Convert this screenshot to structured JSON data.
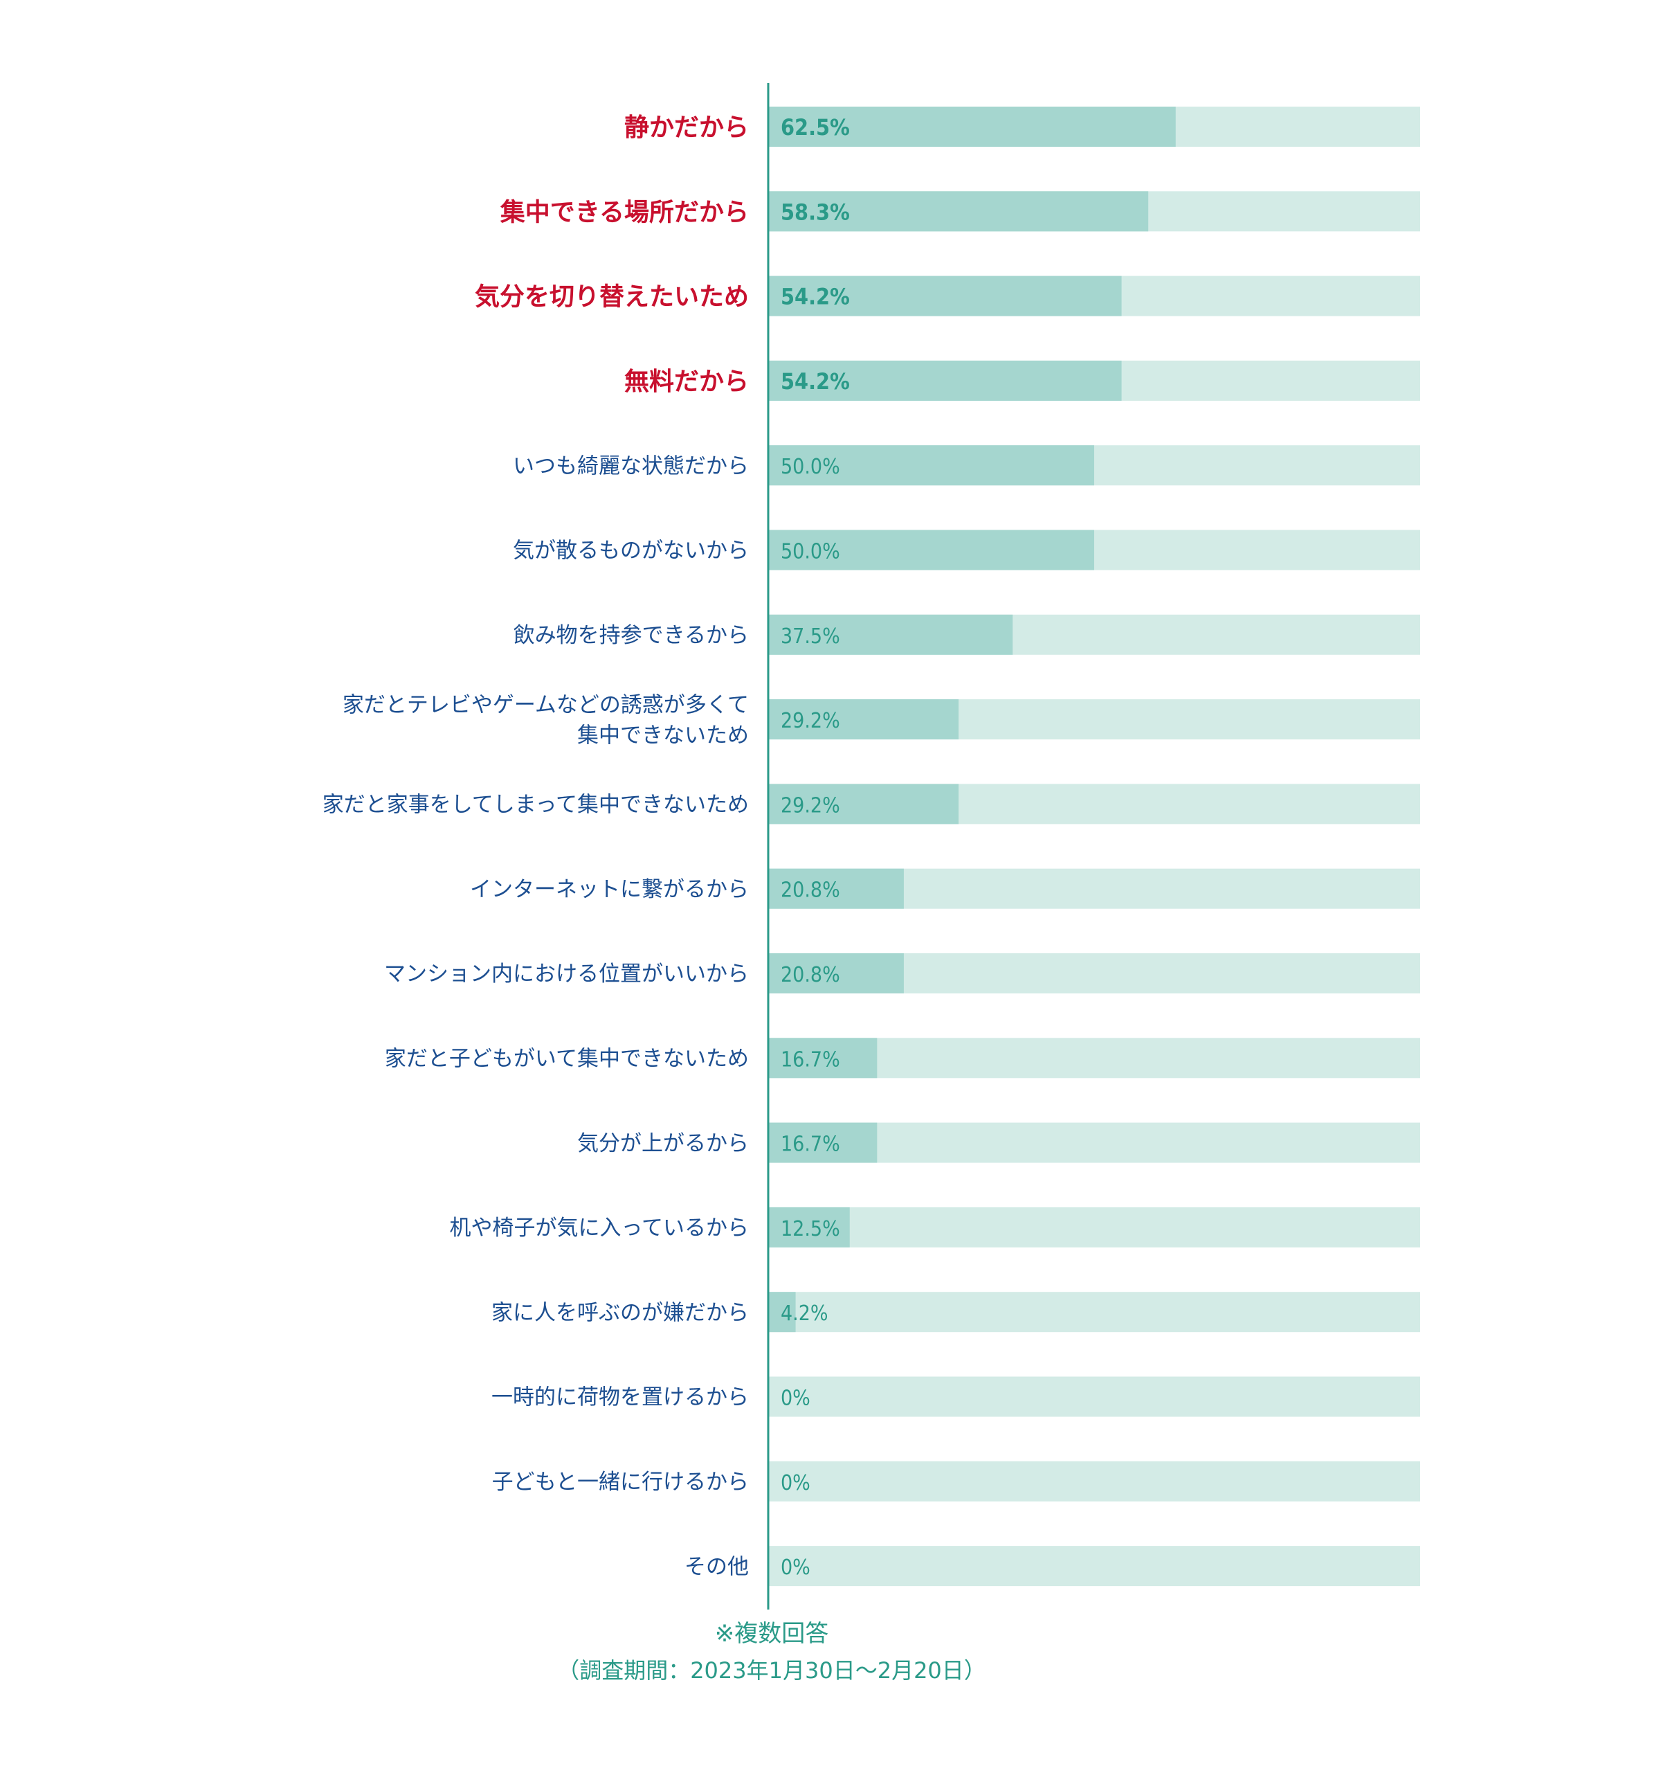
{
  "chart_data": {
    "type": "bar",
    "orientation": "horizontal",
    "categories": [
      "静かだから",
      "集中できる場所だから",
      "気分を切り替えたいため",
      "無料だから",
      "いつも綺麗な状態だから",
      "気が散るものがないから",
      "飲み物を持参できるから",
      "家だとテレビやゲームなどの誘惑が多くて\n集中できないため",
      "家だと家事をしてしまって集中できないため",
      "インターネットに繋がるから",
      "マンション内における位置がいいから",
      "家だと子どもがいて集中できないため",
      "気分が上がるから",
      "机や椅子が気に入っているから",
      "家に人を呼ぶのが嫌だから",
      "一時的に荷物を置けるから",
      "子どもと一緒に行けるから",
      "その他"
    ],
    "values": [
      62.5,
      58.3,
      54.2,
      54.2,
      50.0,
      50.0,
      37.5,
      29.2,
      29.2,
      20.8,
      20.8,
      16.7,
      16.7,
      12.5,
      4.2,
      0,
      0,
      0
    ],
    "value_labels": [
      "62.5%",
      "58.3%",
      "54.2%",
      "54.2%",
      "50.0%",
      "50.0%",
      "37.5%",
      "29.2%",
      "29.2%",
      "20.8%",
      "20.8%",
      "16.7%",
      "16.7%",
      "12.5%",
      "4.2%",
      "0%",
      "0%",
      "0%"
    ],
    "highlighted_count": 4,
    "xlim": [
      0,
      100
    ],
    "grid": false,
    "title": "",
    "xlabel": "",
    "ylabel": ""
  },
  "colors": {
    "bar_fill": "#a5d6cf",
    "bar_track": "#d3ebe6",
    "axis_line": "#2a9a88",
    "label_highlight": "#c8102e",
    "label_normal": "#1d4f91",
    "value_text": "#2a9a88"
  },
  "notes": {
    "multiple_answers": "※複数回答",
    "survey_period": "（調査期間：2023年1月30日～2月20日）"
  }
}
